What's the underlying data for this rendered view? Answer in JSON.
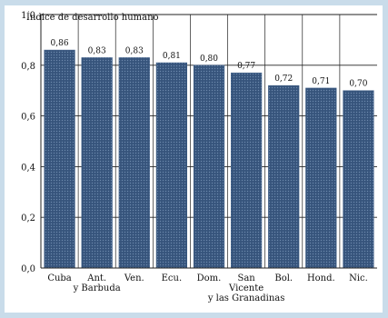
{
  "chart_data": {
    "type": "bar",
    "title": "Índice de desarrollo humano",
    "categories": [
      [
        "Cuba"
      ],
      [
        "Ant.",
        "y Barbuda"
      ],
      [
        "Ven."
      ],
      [
        "Ecu."
      ],
      [
        "Dom."
      ],
      [
        "San",
        "Vicente",
        "y las Granadinas"
      ],
      [
        "Bol."
      ],
      [
        "Hond."
      ],
      [
        "Nic."
      ]
    ],
    "values": [
      0.86,
      0.83,
      0.83,
      0.81,
      0.8,
      0.77,
      0.72,
      0.71,
      0.7
    ],
    "value_labels": [
      "0,86",
      "0,83",
      "0,83",
      "0,81",
      "0,80",
      "0,77",
      "0,72",
      "0,71",
      "0,70"
    ],
    "ylim": [
      0,
      1.0
    ],
    "yticks": [
      0.0,
      0.2,
      0.4,
      0.6,
      0.8,
      1.0
    ],
    "ytick_labels": [
      "0,0",
      "0,2",
      "0,4",
      "0,6",
      "0,8",
      "1,0"
    ],
    "grid": true,
    "bar_color": "#3d5d86",
    "xlabel": "",
    "ylabel": ""
  }
}
